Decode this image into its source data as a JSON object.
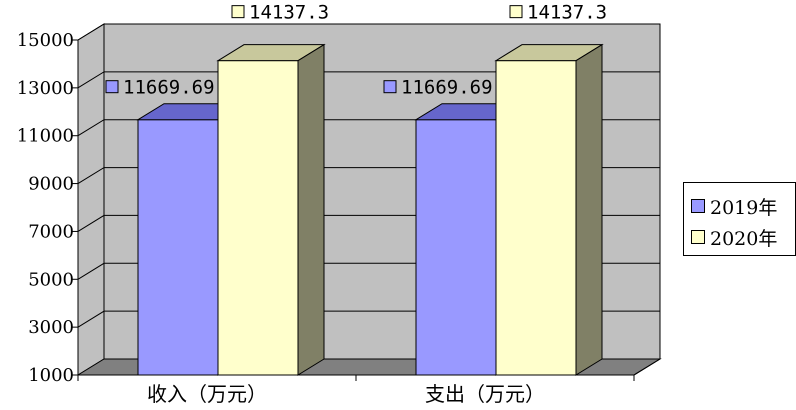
{
  "chart_data": {
    "type": "bar",
    "title": "",
    "xlabel": "",
    "ylabel": "",
    "categories": [
      "收入（万元）",
      "支出（万元）"
    ],
    "series": [
      {
        "name": "2019年",
        "values": [
          11669.69,
          11669.69
        ],
        "labels": [
          "11669.69",
          "11669.69"
        ],
        "color": "#9999ff",
        "top_color": "#6666cc",
        "side_color": "#5a5a99"
      },
      {
        "name": "2020年",
        "values": [
          14137.3,
          14137.3
        ],
        "labels": [
          "14137.3",
          "14137.3"
        ],
        "color": "#ffffcc",
        "top_color": "#c8c89c",
        "side_color": "#808066"
      }
    ],
    "ylim": [
      1000,
      15000
    ],
    "yticks": [
      "1000",
      "3000",
      "5000",
      "7000",
      "9000",
      "11000",
      "13000",
      "15000"
    ],
    "grid": true,
    "style": "3d-clustered-column",
    "wall_color": "#c0c0c0",
    "floor_color": "#808080",
    "legend_position": "right"
  }
}
